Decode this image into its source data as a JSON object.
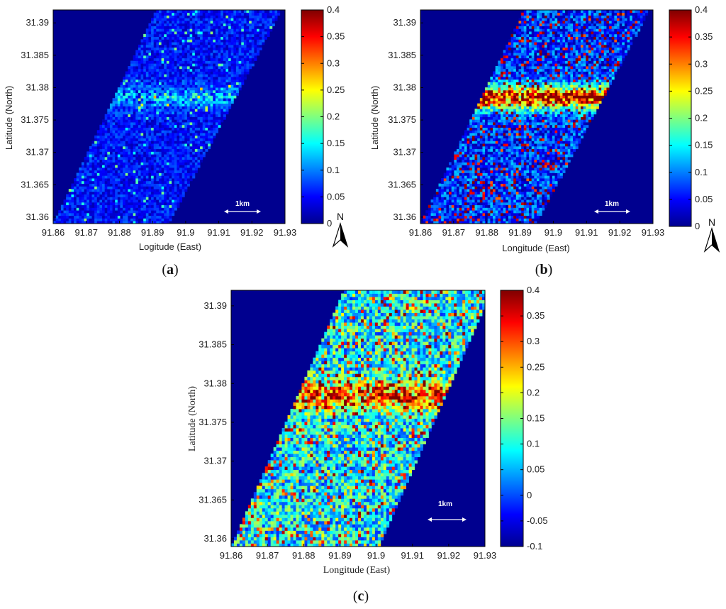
{
  "figure": {
    "panels": [
      {
        "id": "a",
        "caption_letter": "a",
        "xlabel": "Logitude (East)",
        "ylabel": "Latitude (North)",
        "scale_bar_label": "1km",
        "north_label": "N",
        "colorbar_ticks": [
          "0",
          "0.05",
          "0.1",
          "0.15",
          "0.2",
          "0.25",
          "0.3",
          "0.35",
          "0.4"
        ]
      },
      {
        "id": "b",
        "caption_letter": "b",
        "xlabel": "Longitude (East)",
        "ylabel": "Latitude (North)",
        "scale_bar_label": "1km",
        "north_label": "N",
        "colorbar_ticks": [
          "0",
          "0.05",
          "0.1",
          "0.15",
          "0.2",
          "0.25",
          "0.3",
          "0.35",
          "0.4"
        ]
      },
      {
        "id": "c",
        "caption_letter": "c",
        "xlabel": "Longitude (East)",
        "ylabel": "Latitude (North)",
        "scale_bar_label": "1km",
        "colorbar_ticks": [
          "-0.1",
          "-0.05",
          "0",
          "0.05",
          "0.1",
          "0.15",
          "0.2",
          "0.25",
          "0.3",
          "0.35",
          "0.4"
        ]
      }
    ]
  },
  "chart_data": [
    {
      "type": "heatmap",
      "panel": "a",
      "xlabel": "Logitude (East)",
      "ylabel": "Latitude (North)",
      "xlim": [
        91.86,
        91.93
      ],
      "ylim": [
        31.359,
        31.392
      ],
      "xticks": [
        "91.86",
        "91.87",
        "91.88",
        "91.89",
        "91.9",
        "91.91",
        "91.92",
        "91.93"
      ],
      "yticks": [
        "31.36",
        "31.365",
        "31.37",
        "31.375",
        "31.38",
        "31.385",
        "31.39"
      ],
      "colorbar": {
        "min": 0,
        "max": 0.4,
        "colormap": "jet"
      },
      "swath_corners": {
        "bottom_left_lon": 91.86,
        "bottom_right_lon": 91.895,
        "top_left_lon": 91.891,
        "top_right_lon": 91.929
      },
      "typical_value": 0.06,
      "features": "mostly low values 0-0.1 with a brighter band near latitude 31.378-31.381"
    },
    {
      "type": "heatmap",
      "panel": "b",
      "xlabel": "Longitude (East)",
      "ylabel": "Latitude (North)",
      "xlim": [
        91.86,
        91.93
      ],
      "ylim": [
        31.359,
        31.392
      ],
      "xticks": [
        "91.86",
        "91.87",
        "91.88",
        "91.89",
        "91.9",
        "91.91",
        "91.92",
        "91.93"
      ],
      "yticks": [
        "31.36",
        "31.365",
        "31.37",
        "31.375",
        "31.38",
        "31.385",
        "31.39"
      ],
      "colorbar": {
        "min": 0,
        "max": 0.4,
        "colormap": "jet"
      },
      "swath_corners": {
        "bottom_left_lon": 91.86,
        "bottom_right_lon": 91.895,
        "top_left_lon": 91.891,
        "top_right_lon": 91.929
      },
      "typical_value": 0.12,
      "features": "high values up to 0.4 concentrated near latitude 31.376-31.382"
    },
    {
      "type": "heatmap",
      "panel": "c",
      "xlabel": "Longitude (East)",
      "ylabel": "Latitude (North)",
      "xlim": [
        91.86,
        91.93
      ],
      "ylim": [
        31.359,
        31.392
      ],
      "xticks": [
        "91.86",
        "91.87",
        "91.88",
        "91.89",
        "91.9",
        "91.91",
        "91.92",
        "91.93"
      ],
      "yticks": [
        "31.36",
        "31.365",
        "31.37",
        "31.375",
        "31.38",
        "31.385",
        "31.39"
      ],
      "colorbar": {
        "min": -0.1,
        "max": 0.4,
        "colormap": "jet"
      },
      "swath_corners": {
        "bottom_left_lon": 91.86,
        "bottom_right_lon": 91.901,
        "top_left_lon": 91.891,
        "top_right_lon": 91.932
      },
      "typical_value": 0.1,
      "features": "widespread values 0.05-0.4 with a high band near latitude 31.376-31.381"
    }
  ]
}
